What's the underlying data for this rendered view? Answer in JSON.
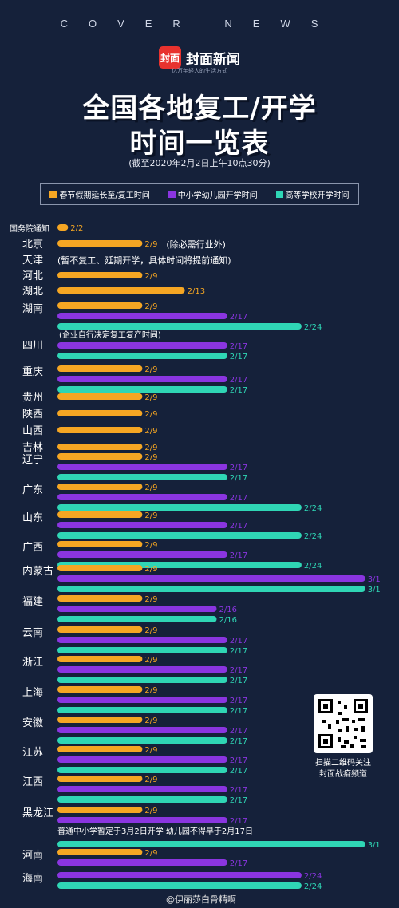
{
  "header": {
    "cover_news": "COVER   NEWS",
    "logo_mark": "封面",
    "logo_name": "封面新闻",
    "logo_slogan": "亿万年轻人的生活方式"
  },
  "title": {
    "line1": "全国各地复工/开学",
    "line2": "时间一览表",
    "subtitle": "(截至2020年2月2日上午10点30分)"
  },
  "legend": {
    "items": [
      {
        "label": "春节假期延长至/复工时间",
        "color": "#f5a623"
      },
      {
        "label": "中小学幼儿园开学时间",
        "color": "#8a35e0"
      },
      {
        "label": "高等学校开学时间",
        "color": "#2fd6b5"
      }
    ]
  },
  "chart_data": {
    "type": "bar",
    "x_unit": "date (month/day, 2020)",
    "series_names": [
      "春节假期延长至/复工时间",
      "中小学幼儿园开学时间",
      "高等学校开学时间"
    ],
    "rows": [
      {
        "region": "国务院通知",
        "work": "2/2",
        "school": null,
        "college": null,
        "note": ""
      },
      {
        "region": "北京",
        "work": "2/9",
        "school": null,
        "college": null,
        "note": "(除必需行业外)"
      },
      {
        "region": "天津",
        "work": null,
        "school": null,
        "college": null,
        "note": "(暂不复工、延期开学，具体时间将提前通知)"
      },
      {
        "region": "河北",
        "work": "2/9",
        "school": null,
        "college": null,
        "note": ""
      },
      {
        "region": "湖北",
        "work": "2/13",
        "school": null,
        "college": null,
        "note": ""
      },
      {
        "region": "湖南",
        "work": "2/9",
        "school": "2/17",
        "college": "2/24",
        "note": ""
      },
      {
        "region": "四川",
        "work": null,
        "school": "2/17",
        "college": "2/17",
        "note": "(企业自行决定复工复产时间)"
      },
      {
        "region": "重庆",
        "work": "2/9",
        "school": "2/17",
        "college": "2/17",
        "note": ""
      },
      {
        "region": "贵州",
        "work": "2/9",
        "school": null,
        "college": null,
        "note": ""
      },
      {
        "region": "陕西",
        "work": "2/9",
        "school": null,
        "college": null,
        "note": ""
      },
      {
        "region": "山西",
        "work": "2/9",
        "school": null,
        "college": null,
        "note": ""
      },
      {
        "region": "吉林",
        "work": "2/9",
        "school": null,
        "college": null,
        "note": ""
      },
      {
        "region": "辽宁",
        "work": "2/9",
        "school": "2/17",
        "college": "2/17",
        "note": ""
      },
      {
        "region": "广东",
        "work": "2/9",
        "school": "2/17",
        "college": "2/24",
        "note": ""
      },
      {
        "region": "山东",
        "work": "2/9",
        "school": "2/17",
        "college": "2/24",
        "note": ""
      },
      {
        "region": "广西",
        "work": "2/9",
        "school": "2/17",
        "college": "2/24",
        "note": ""
      },
      {
        "region": "内蒙古",
        "work": "2/9",
        "school": "3/1",
        "college": "3/1",
        "note": ""
      },
      {
        "region": "福建",
        "work": "2/9",
        "school": "2/16",
        "college": "2/16",
        "note": ""
      },
      {
        "region": "云南",
        "work": "2/9",
        "school": "2/17",
        "college": "2/17",
        "note": ""
      },
      {
        "region": "浙江",
        "work": "2/9",
        "school": "2/17",
        "college": "2/17",
        "note": ""
      },
      {
        "region": "上海",
        "work": "2/9",
        "school": "2/17",
        "college": "2/17",
        "note": ""
      },
      {
        "region": "安徽",
        "work": "2/9",
        "school": "2/17",
        "college": "2/17",
        "note": ""
      },
      {
        "region": "江苏",
        "work": "2/9",
        "school": "2/17",
        "college": "2/17",
        "note": ""
      },
      {
        "region": "江西",
        "work": "2/9",
        "school": "2/17",
        "college": "2/17",
        "note": ""
      },
      {
        "region": "黑龙江",
        "work": "2/9",
        "school": "2/17",
        "college": "3/1",
        "note": "普通中小学暂定于3月2日开学 幼儿园不得早于2月17日"
      },
      {
        "region": "河南",
        "work": "2/9",
        "school": "2/17",
        "college": null,
        "note": ""
      },
      {
        "region": "海南",
        "work": null,
        "school": "2/24",
        "college": "2/24",
        "note": ""
      }
    ]
  },
  "qr": {
    "caption_line1": "扫描二维码关注",
    "caption_line2": "封面战疫频道"
  },
  "watermark": "@伊丽莎白骨精啊"
}
